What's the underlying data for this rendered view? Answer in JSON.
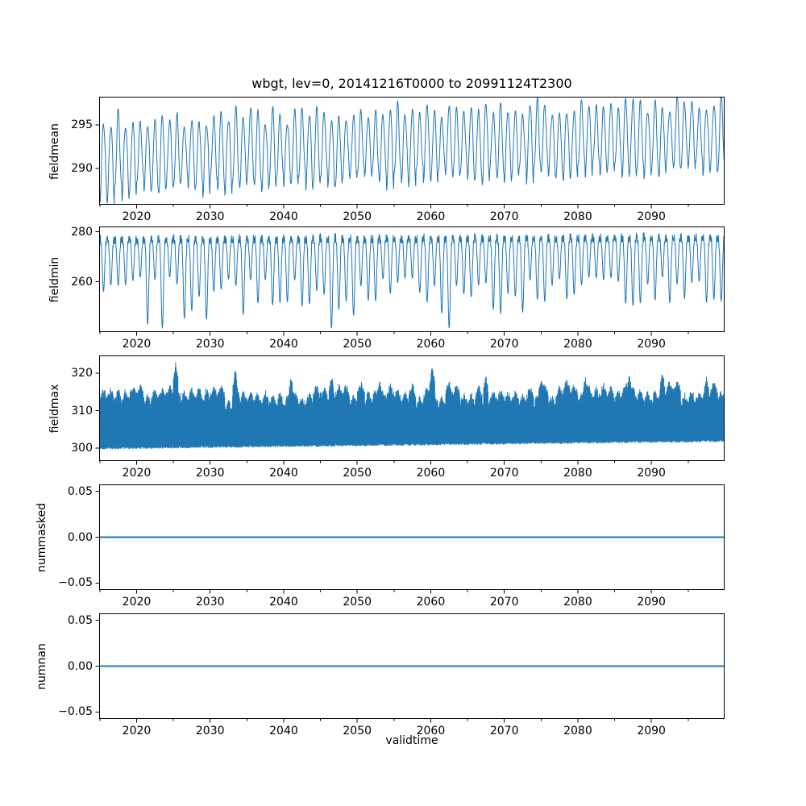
{
  "figure": {
    "title": "wbgt, lev=0, 20141216T0000 to 20991124T2300",
    "xlabel": "validtime",
    "background": "#ffffff",
    "line_color": "#1f77b4",
    "axis_color": "#000000",
    "text_color": "#000000"
  },
  "chart_data": [
    {
      "type": "line",
      "name": "fieldmean",
      "ylabel": "fieldmean",
      "x_range": [
        2014.96,
        2099.9
      ],
      "x_major_ticks": [
        2020,
        2030,
        2040,
        2050,
        2060,
        2070,
        2080,
        2090
      ],
      "x_minor_ticks": [
        2015,
        2025,
        2035,
        2045,
        2055,
        2065,
        2075,
        2085,
        2095
      ],
      "ylim": [
        285.9,
        298.2
      ],
      "y_ticks": [
        {
          "value": 290,
          "label": "290"
        },
        {
          "value": 295,
          "label": "295"
        }
      ],
      "waveform": "annual_cycle",
      "description": "annual oscillation with slow warming trend, peaks ~295.5 rising to ~297.6, troughs ~287 rising to ~290",
      "envelope": [
        [
          2015.0,
          287.0,
          295.6
        ],
        [
          2030.0,
          288.0,
          296.0
        ],
        [
          2050.0,
          288.6,
          296.4
        ],
        [
          2070.0,
          289.2,
          296.9
        ],
        [
          2085.0,
          289.6,
          297.2
        ],
        [
          2099.9,
          290.2,
          297.6
        ]
      ]
    },
    {
      "type": "line",
      "name": "fieldmin",
      "ylabel": "fieldmin",
      "x_range": [
        2014.96,
        2099.9
      ],
      "x_major_ticks": [
        2020,
        2030,
        2040,
        2050,
        2060,
        2070,
        2080,
        2090
      ],
      "x_minor_ticks": [
        2015,
        2025,
        2035,
        2045,
        2055,
        2065,
        2075,
        2085,
        2095
      ],
      "ylim": [
        240.0,
        282.0
      ],
      "y_ticks": [
        {
          "value": 260,
          "label": "260"
        },
        {
          "value": 280,
          "label": "280"
        }
      ],
      "waveform": "annual_dip",
      "description": "tops steady near 278-280, annual downward spikes varying between ~262 and ~242",
      "envelope_top": [
        [
          2015.0,
          279.4
        ],
        [
          2099.9,
          280.2
        ]
      ],
      "trough_range": [
        241.5,
        262.0
      ]
    },
    {
      "type": "line",
      "name": "fieldmax",
      "ylabel": "fieldmax",
      "x_range": [
        2014.96,
        2099.9
      ],
      "x_major_ticks": [
        2020,
        2030,
        2040,
        2050,
        2060,
        2070,
        2080,
        2090
      ],
      "x_minor_ticks": [
        2015,
        2025,
        2035,
        2045,
        2055,
        2065,
        2075,
        2085,
        2095
      ],
      "ylim": [
        296.6,
        324.7
      ],
      "y_ticks": [
        {
          "value": 300,
          "label": "300"
        },
        {
          "value": 310,
          "label": "310"
        },
        {
          "value": 320,
          "label": "320"
        }
      ],
      "waveform": "dense_band",
      "description": "dense band from ~299.5 bottom to comb tops ~313-318 with occasional spikes above 320",
      "band_bottom": [
        [
          2015.0,
          299.6
        ],
        [
          2099.9,
          301.6
        ]
      ],
      "band_top_range": [
        312.8,
        317.3
      ],
      "spikes": [
        [
          2025.3,
          323.4
        ],
        [
          2033.4,
          321.6
        ],
        [
          2041.0,
          319.6
        ],
        [
          2046.5,
          320.2
        ],
        [
          2053.0,
          319.2
        ],
        [
          2060.2,
          322.6
        ],
        [
          2067.5,
          320.2
        ],
        [
          2075.0,
          319.4
        ],
        [
          2081.0,
          319.8
        ],
        [
          2087.0,
          320.0
        ],
        [
          2091.5,
          320.8
        ],
        [
          2097.5,
          319.8
        ]
      ]
    },
    {
      "type": "line",
      "name": "nummasked",
      "ylabel": "nummasked",
      "x_range": [
        2014.96,
        2099.9
      ],
      "x_major_ticks": [
        2020,
        2030,
        2040,
        2050,
        2060,
        2070,
        2080,
        2090
      ],
      "x_minor_ticks": [
        2015,
        2025,
        2035,
        2045,
        2055,
        2065,
        2075,
        2085,
        2095
      ],
      "ylim": [
        -0.0572,
        0.0572
      ],
      "y_ticks": [
        {
          "value": 0.05,
          "label": "0.05"
        },
        {
          "value": 0.0,
          "label": "0.00"
        },
        {
          "value": -0.05,
          "label": "−0.05"
        }
      ],
      "waveform": "constant",
      "value": 0.0,
      "description": "constant zero line"
    },
    {
      "type": "line",
      "name": "numnan",
      "ylabel": "numnan",
      "x_range": [
        2014.96,
        2099.9
      ],
      "x_major_ticks": [
        2020,
        2030,
        2040,
        2050,
        2060,
        2070,
        2080,
        2090
      ],
      "x_minor_ticks": [
        2015,
        2025,
        2035,
        2045,
        2055,
        2065,
        2075,
        2085,
        2095
      ],
      "ylim": [
        -0.0572,
        0.0572
      ],
      "y_ticks": [
        {
          "value": 0.05,
          "label": "0.05"
        },
        {
          "value": 0.0,
          "label": "0.00"
        },
        {
          "value": -0.05,
          "label": "−0.05"
        }
      ],
      "waveform": "constant",
      "value": 0.0,
      "description": "constant zero line"
    }
  ]
}
